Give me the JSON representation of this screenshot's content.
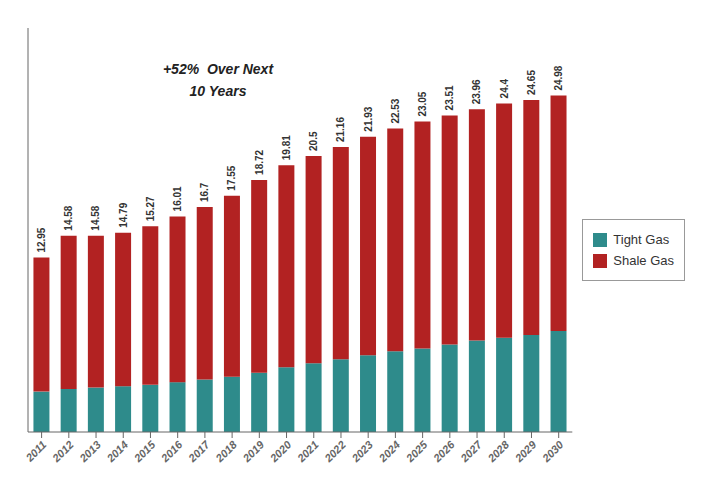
{
  "chart_data": {
    "type": "bar",
    "stacked": true,
    "categories": [
      "2011",
      "2012",
      "2013",
      "2014",
      "2015",
      "2016",
      "2017",
      "2018",
      "2019",
      "2020",
      "2021",
      "2022",
      "2023",
      "2024",
      "2025",
      "2026",
      "2027",
      "2028",
      "2029",
      "2030"
    ],
    "series": [
      {
        "name": "Tight Gas",
        "color": "#2E8B8B",
        "values": [
          3.0,
          3.2,
          3.3,
          3.4,
          3.5,
          3.7,
          3.9,
          4.1,
          4.4,
          4.8,
          5.1,
          5.4,
          5.7,
          6.0,
          6.2,
          6.5,
          6.8,
          7.0,
          7.2,
          7.5
        ]
      },
      {
        "name": "Shale Gas",
        "color": "#B22222",
        "values": [
          9.95,
          11.38,
          11.28,
          11.39,
          11.77,
          12.31,
          12.8,
          13.45,
          14.32,
          15.01,
          15.4,
          15.76,
          16.23,
          16.53,
          16.85,
          17.01,
          17.16,
          17.4,
          17.45,
          17.48
        ]
      }
    ],
    "totals": [
      12.95,
      14.58,
      14.58,
      14.79,
      15.27,
      16.01,
      16.7,
      17.55,
      18.72,
      19.81,
      20.5,
      21.16,
      21.93,
      22.53,
      23.05,
      23.51,
      23.96,
      24.4,
      24.65,
      24.98
    ],
    "annotations": [
      "+52%  Over Next",
      "10 Years"
    ],
    "ylim": [
      0,
      30
    ],
    "legend": "right",
    "tick_labels": "x",
    "grid": false
  }
}
